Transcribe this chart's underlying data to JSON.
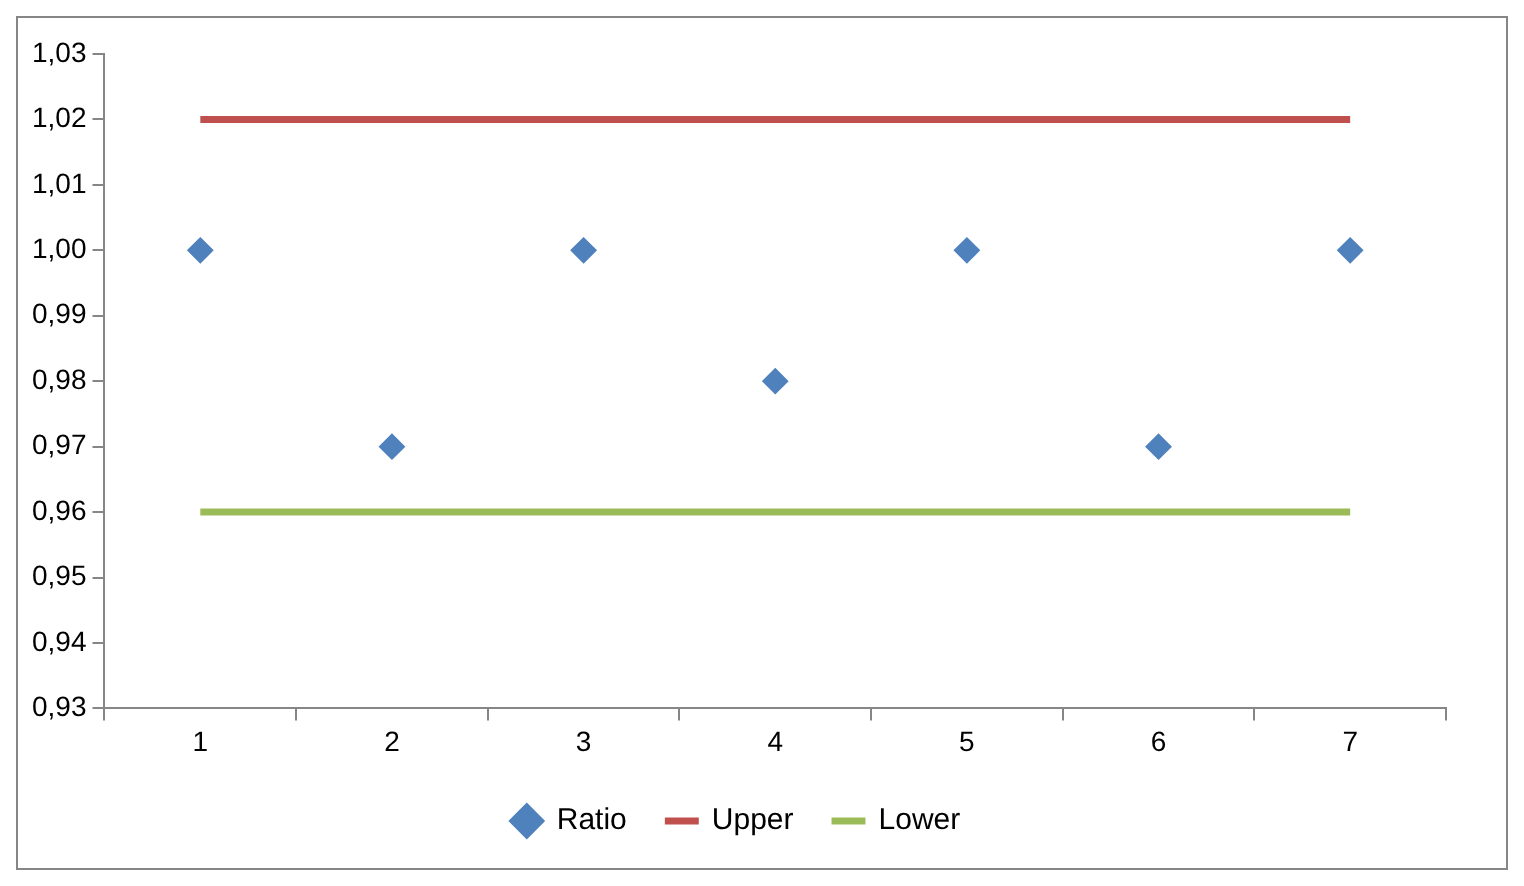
{
  "chart_data": {
    "type": "line",
    "categories": [
      "1",
      "2",
      "3",
      "4",
      "5",
      "6",
      "7"
    ],
    "series": [
      {
        "name": "Ratio",
        "type": "scatter",
        "marker": "diamond",
        "color": "#4f81bd",
        "values": [
          1.0,
          0.97,
          1.0,
          0.98,
          1.0,
          0.97,
          1.0
        ]
      },
      {
        "name": "Upper",
        "type": "line",
        "marker": "none",
        "color": "#c0504d",
        "values": [
          1.02,
          1.02,
          1.02,
          1.02,
          1.02,
          1.02,
          1.02
        ]
      },
      {
        "name": "Lower",
        "type": "line",
        "marker": "none",
        "color": "#9bbb59",
        "values": [
          0.96,
          0.96,
          0.96,
          0.96,
          0.96,
          0.96,
          0.96
        ]
      }
    ],
    "ylim": [
      0.93,
      1.03
    ],
    "yticks": [
      {
        "value": 0.93,
        "label": "0,93"
      },
      {
        "value": 0.94,
        "label": "0,94"
      },
      {
        "value": 0.95,
        "label": "0,95"
      },
      {
        "value": 0.96,
        "label": "0,96"
      },
      {
        "value": 0.97,
        "label": "0,97"
      },
      {
        "value": 0.98,
        "label": "0,98"
      },
      {
        "value": 0.99,
        "label": "0,99"
      },
      {
        "value": 1.0,
        "label": "1,00"
      },
      {
        "value": 1.01,
        "label": "1,01"
      },
      {
        "value": 1.02,
        "label": "1,02"
      },
      {
        "value": 1.03,
        "label": "1,03"
      }
    ],
    "grid": false,
    "legend": "bottom"
  }
}
